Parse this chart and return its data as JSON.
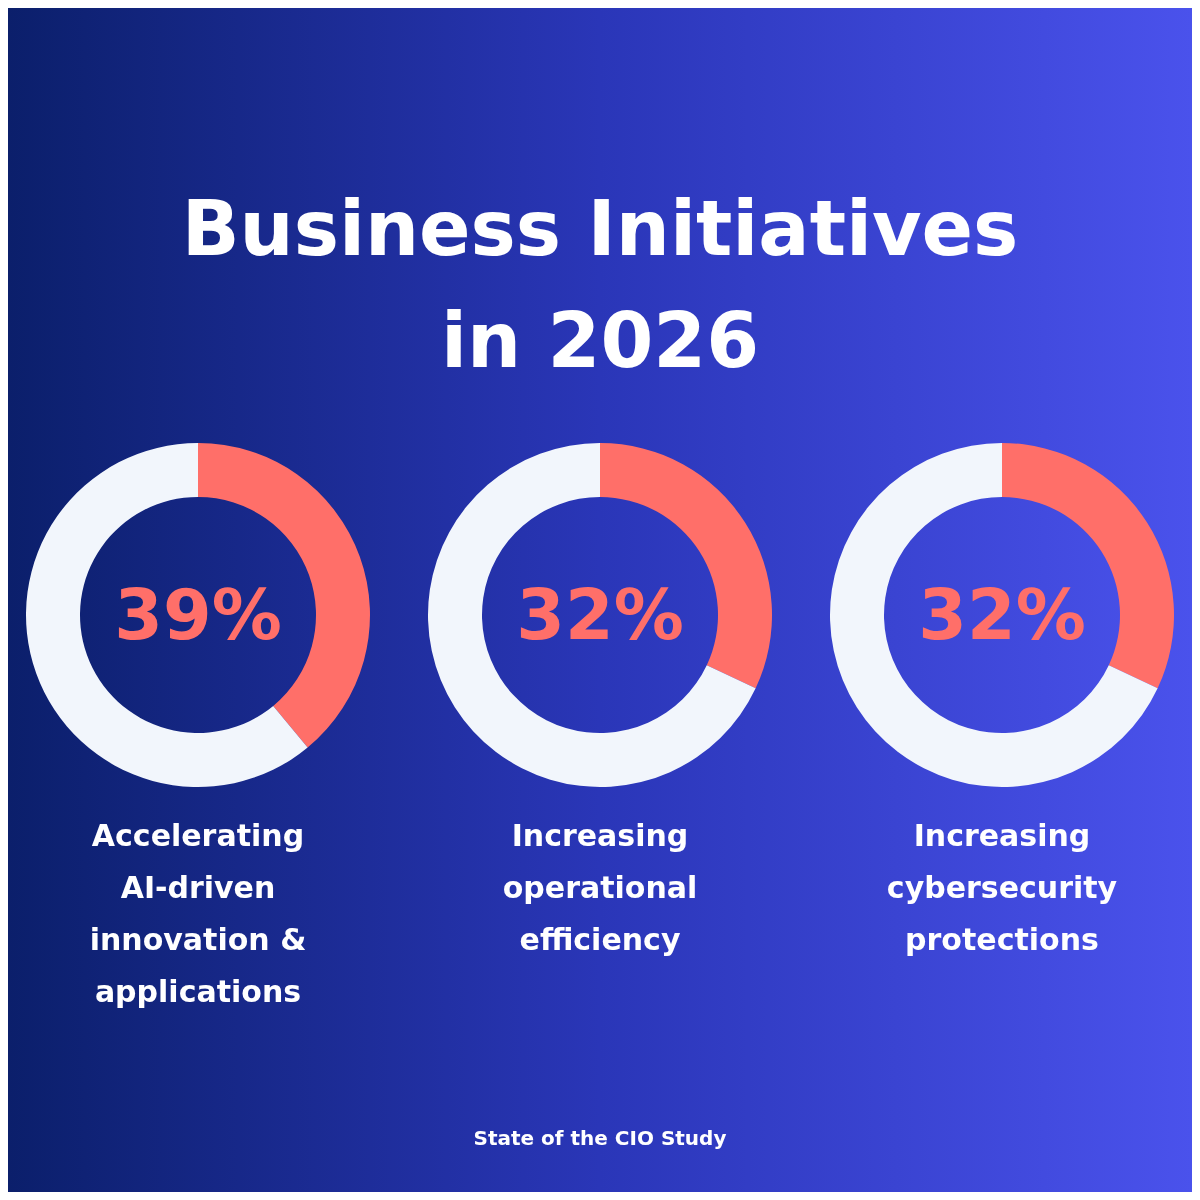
{
  "chart_data": [
    {
      "type": "other",
      "title": "Business Initiatives in 2026",
      "annotations": [
        "State of the CIO Study"
      ]
    },
    {
      "type": "donut",
      "xlabel": "Accelerating AI-driven innovation & applications",
      "categories": [
        null,
        null
      ],
      "values": [
        39,
        61
      ],
      "colors": [
        "#ff6f69",
        "#f2f6fc"
      ],
      "value_labels": [
        "39%",
        null
      ]
    },
    {
      "type": "donut",
      "xlabel": "Increasing operational efficiency",
      "categories": [
        null,
        null
      ],
      "values": [
        32,
        68
      ],
      "colors": [
        "#ff6f69",
        "#f2f6fc"
      ],
      "value_labels": [
        "32%",
        null
      ]
    },
    {
      "type": "donut",
      "xlabel": "Increasing cybersecurity protections",
      "categories": [
        null,
        null
      ],
      "values": [
        32,
        68
      ],
      "colors": [
        "#ff6f69",
        "#f2f6fc"
      ],
      "value_labels": [
        "32%",
        null
      ]
    }
  ]
}
